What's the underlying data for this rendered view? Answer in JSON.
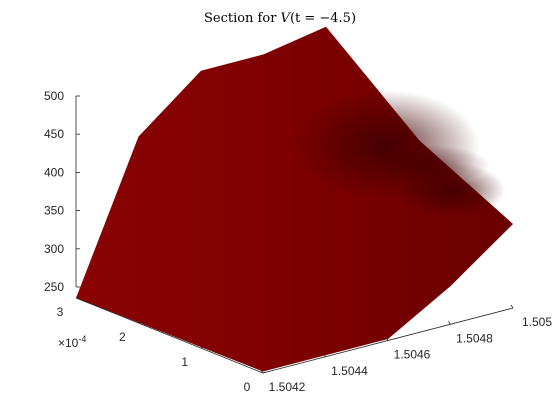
{
  "chart_data": {
    "type": "surface",
    "title": "Section for V(t = −4.5)",
    "title_parts": {
      "prefix": "Section for ",
      "var": "V",
      "rest": "(t = −4.5)"
    },
    "xlabel": "",
    "ylabel": "",
    "zlabel": "",
    "x_scale_label": {
      "base": "×10",
      "exp": "-4"
    },
    "x_axis": {
      "range": [
        0,
        0.0003
      ],
      "ticks": [
        0,
        0.0001,
        0.0002,
        0.0003
      ],
      "tick_labels": [
        "0",
        "1",
        "2",
        "3"
      ]
    },
    "y_axis": {
      "range": [
        1.5042,
        1.505
      ],
      "ticks": [
        1.5042,
        1.5044,
        1.5046,
        1.5048,
        1.505
      ],
      "tick_labels": [
        "1.5042",
        "1.5044",
        "1.5046",
        "1.5048",
        "1.505"
      ]
    },
    "z_axis": {
      "range": [
        250,
        500
      ],
      "ticks": [
        250,
        300,
        350,
        400,
        450,
        500
      ],
      "tick_labels": [
        "250",
        "300",
        "350",
        "400",
        "450",
        "500"
      ]
    },
    "grid": false,
    "colors": {
      "surface": "#7a0000",
      "surface_dark": "#4a0000",
      "surface_light": "#8c0404"
    },
    "surface_points": [
      {
        "x": 0.0003,
        "y": 1.5042,
        "z": 250
      },
      {
        "x": 0.0003,
        "y": 1.5044,
        "z": 440
      },
      {
        "x": 0.0003,
        "y": 1.5046,
        "z": 505
      },
      {
        "x": 0.0003,
        "y": 1.5048,
        "z": 505
      },
      {
        "x": 0.0003,
        "y": 1.505,
        "z": 520
      },
      {
        "x": 0.00015,
        "y": 1.505,
        "z": 420
      },
      {
        "x": 0,
        "y": 1.505,
        "z": 360
      },
      {
        "x": 0,
        "y": 1.5048,
        "z": 300
      },
      {
        "x": 0,
        "y": 1.5046,
        "z": 252
      },
      {
        "x": 0,
        "y": 1.5044,
        "z": 252
      },
      {
        "x": 0,
        "y": 1.5042,
        "z": 252
      },
      {
        "x": 0.00015,
        "y": 1.5042,
        "z": 251
      }
    ]
  }
}
